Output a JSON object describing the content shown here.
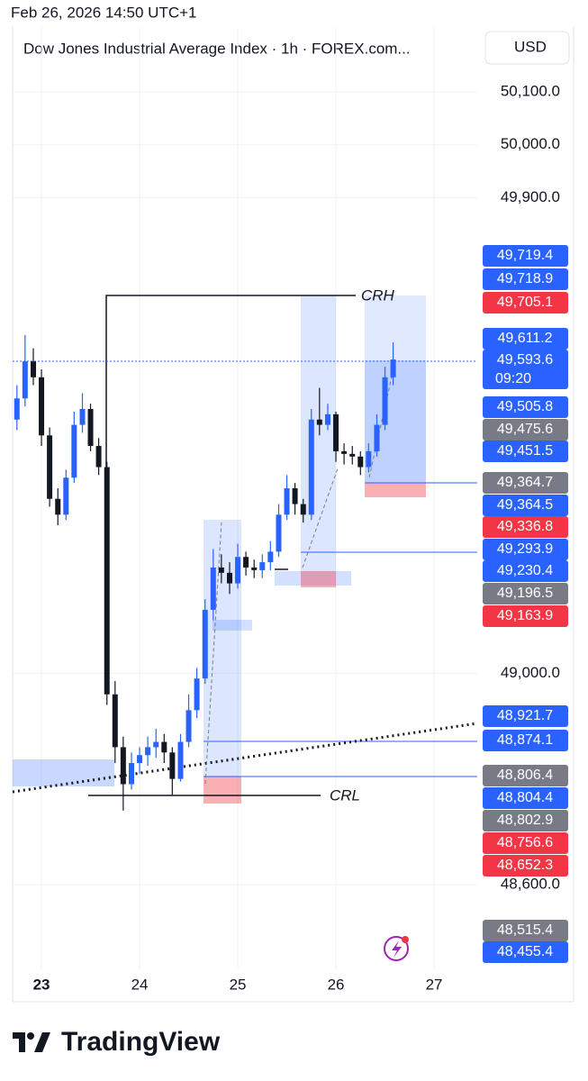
{
  "timestamp": "Feb 26, 2026 14:50 UTC+1",
  "currency": "USD",
  "brand": "TradingView",
  "chart_data": {
    "type": "candlestick",
    "title": "Dow Jones Industrial Average Index · 1h · FOREX.com...",
    "x": [
      22.75,
      22.833,
      22.917,
      23.0,
      23.083,
      23.167,
      23.25,
      23.333,
      23.417,
      23.5,
      23.583,
      23.667,
      23.75,
      23.833,
      23.917,
      24.0,
      24.083,
      24.167,
      24.25,
      24.333,
      24.417,
      24.5,
      24.583,
      24.667,
      24.75,
      24.833,
      24.917,
      25.0,
      25.083,
      25.167,
      25.25,
      25.333,
      25.417,
      25.5,
      25.583,
      25.667,
      25.75,
      25.833,
      25.917,
      26.0,
      26.083,
      26.167,
      26.25,
      26.333,
      26.417,
      26.5,
      26.583
    ],
    "open": [
      49480,
      49520,
      49590,
      49560,
      49450,
      49330,
      49300,
      49370,
      49470,
      49500,
      49430,
      49390,
      48960,
      48860,
      48790,
      48830,
      48845,
      48860,
      48870,
      48850,
      48800,
      48870,
      48930,
      48990,
      49120,
      49200,
      49190,
      49170,
      49220,
      49200,
      49195,
      49210,
      49230,
      49300,
      49350,
      49320,
      49300,
      49480,
      49470,
      49490,
      49420,
      49415,
      49410,
      49390,
      49420,
      49470,
      49560
    ],
    "high": [
      49545,
      49640,
      49615,
      49575,
      49465,
      49350,
      49385,
      49495,
      49530,
      49510,
      49445,
      49400,
      48985,
      48880,
      48850,
      48860,
      48880,
      48895,
      48885,
      48860,
      48885,
      48960,
      49010,
      49140,
      49235,
      49225,
      49210,
      49245,
      49230,
      49215,
      49225,
      49250,
      49320,
      49375,
      49360,
      49330,
      49500,
      49540,
      49510,
      49495,
      49435,
      49430,
      49420,
      49435,
      49490,
      49580,
      49626
    ],
    "low": [
      49460,
      49505,
      49545,
      49430,
      49315,
      49280,
      49290,
      49360,
      49455,
      49420,
      49375,
      48940,
      48830,
      48740,
      48780,
      48810,
      48825,
      48840,
      48830,
      48770,
      48795,
      48860,
      48915,
      48980,
      49100,
      49170,
      49150,
      49160,
      49185,
      49180,
      49180,
      49195,
      49220,
      49290,
      49300,
      49285,
      49290,
      49450,
      49460,
      49400,
      49395,
      49395,
      49375,
      49380,
      49410,
      49460,
      49545
    ],
    "close": [
      49520,
      49590,
      49560,
      49450,
      49330,
      49300,
      49370,
      49470,
      49500,
      49430,
      49390,
      48960,
      48860,
      48790,
      48830,
      48845,
      48860,
      48870,
      48850,
      48800,
      48870,
      48930,
      48990,
      49120,
      49200,
      49190,
      49170,
      49220,
      49200,
      49195,
      49210,
      49230,
      49300,
      49350,
      49320,
      49300,
      49480,
      49470,
      49490,
      49420,
      49415,
      49410,
      49390,
      49420,
      49470,
      49560,
      49593.6
    ],
    "up_color": "#2962ff",
    "down_color": "#131722",
    "xlim": [
      22.706,
      27.44
    ],
    "xticks": [
      23,
      24,
      25,
      26,
      27
    ],
    "ylim": [
      48441.4,
      50222.8
    ],
    "yticks": [
      {
        "value": 50100,
        "label": "50,100.0"
      },
      {
        "value": 50000,
        "label": "50,000.0"
      },
      {
        "value": 49900,
        "label": "49,900.0"
      },
      {
        "value": 49000,
        "label": "49,000.0"
      },
      {
        "value": 48600,
        "label": "48,600.0"
      }
    ],
    "grid": true,
    "annotations": [
      "CRH",
      "CRL"
    ],
    "countdown": "09:20",
    "price_labels": [
      {
        "value": 49719.4,
        "label": "49,719.4",
        "color": "#2962ff"
      },
      {
        "value": 49718.9,
        "label": "49,718.9",
        "color": "#2962ff"
      },
      {
        "value": 49705.1,
        "label": "49,705.1",
        "color": "#f23645"
      },
      {
        "value": 49611.2,
        "label": "49,611.2",
        "color": "#2962ff"
      },
      {
        "value": 49593.6,
        "label": "49,593.6",
        "color": "#2962ff"
      },
      {
        "value": 49505.8,
        "label": "49,505.8",
        "color": "#2962ff"
      },
      {
        "value": 49475.6,
        "label": "49,475.6",
        "color": "#787b86"
      },
      {
        "value": 49451.5,
        "label": "49,451.5",
        "color": "#2962ff"
      },
      {
        "value": 49364.7,
        "label": "49,364.7",
        "color": "#787b86"
      },
      {
        "value": 49364.5,
        "label": "49,364.5",
        "color": "#2962ff"
      },
      {
        "value": 49336.8,
        "label": "49,336.8",
        "color": "#f23645"
      },
      {
        "value": 49293.9,
        "label": "49,293.9",
        "color": "#2962ff"
      },
      {
        "value": 49230.4,
        "label": "49,230.4",
        "color": "#2962ff"
      },
      {
        "value": 49196.5,
        "label": "49,196.5",
        "color": "#787b86"
      },
      {
        "value": 49163.9,
        "label": "49,163.9",
        "color": "#f23645"
      },
      {
        "value": 48921.7,
        "label": "48,921.7",
        "color": "#2962ff"
      },
      {
        "value": 48874.1,
        "label": "48,874.1",
        "color": "#2962ff"
      },
      {
        "value": 48806.4,
        "label": "48,806.4",
        "color": "#787b86"
      },
      {
        "value": 48804.4,
        "label": "48,804.4",
        "color": "#2962ff"
      },
      {
        "value": 48802.9,
        "label": "48,802.9",
        "color": "#787b86"
      },
      {
        "value": 48756.6,
        "label": "48,756.6",
        "color": "#f23645"
      },
      {
        "value": 48652.3,
        "label": "48,652.3",
        "color": "#f23645"
      },
      {
        "value": 48515.4,
        "label": "48,515.4",
        "color": "#787b86"
      },
      {
        "value": 48455.4,
        "label": "48,455.4",
        "color": "#2962ff"
      }
    ]
  }
}
